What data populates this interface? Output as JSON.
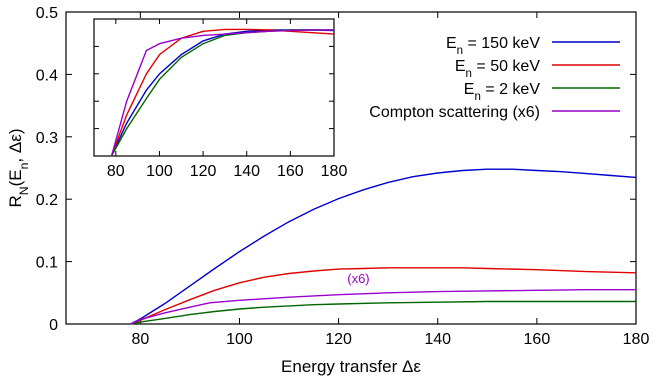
{
  "chart_data": [
    {
      "type": "line",
      "xlabel": "Energy transfer Δε",
      "ylabel": "Rₙ(Eₙ, Δε)",
      "ylabel_parts": {
        "main": "R",
        "sub1": "N",
        "mid": "(E",
        "sub2": "n",
        "tail": ", Δε)"
      },
      "xlim": [
        65,
        180
      ],
      "ylim": [
        0,
        0.5
      ],
      "xticks": [
        80,
        100,
        120,
        140,
        160,
        180
      ],
      "yticks": [
        0,
        0.1,
        0.2,
        0.3,
        0.4,
        0.5
      ],
      "xtick_labels": [
        "80",
        "100",
        "120",
        "140",
        "160",
        "180"
      ],
      "ytick_labels": [
        "0",
        "0.1",
        "0.2",
        "0.3",
        "0.4",
        "0.5"
      ],
      "legend_position": "top-right",
      "grid": false,
      "series": [
        {
          "name": "Eₙ = 150 keV",
          "legend": {
            "pre": "E",
            "sub": "n",
            "post": " = 150 keV"
          },
          "color": "#0000cc",
          "x": [
            78,
            80,
            85,
            90,
            95,
            100,
            105,
            110,
            115,
            120,
            125,
            130,
            135,
            140,
            145,
            150,
            155,
            160,
            165,
            170,
            175,
            180
          ],
          "y": [
            0.0,
            0.008,
            0.033,
            0.061,
            0.089,
            0.116,
            0.141,
            0.164,
            0.184,
            0.201,
            0.215,
            0.227,
            0.236,
            0.242,
            0.246,
            0.248,
            0.248,
            0.246,
            0.244,
            0.241,
            0.238,
            0.235
          ]
        },
        {
          "name": "Eₙ = 50 keV",
          "legend": {
            "pre": "E",
            "sub": "n",
            "post": " = 50 keV"
          },
          "color": "#e00000",
          "x": [
            78,
            80,
            85,
            90,
            95,
            100,
            105,
            110,
            115,
            120,
            125,
            130,
            135,
            140,
            145,
            150,
            160,
            170,
            180
          ],
          "y": [
            0.0,
            0.006,
            0.023,
            0.039,
            0.054,
            0.066,
            0.075,
            0.081,
            0.085,
            0.088,
            0.089,
            0.09,
            0.09,
            0.09,
            0.09,
            0.089,
            0.087,
            0.084,
            0.082
          ]
        },
        {
          "name": "Eₙ = 2 keV",
          "legend": {
            "pre": "E",
            "sub": "n",
            "post": " = 2 keV"
          },
          "color": "#006600",
          "x": [
            78,
            80,
            85,
            90,
            95,
            100,
            105,
            110,
            115,
            120,
            130,
            140,
            150,
            160,
            170,
            180
          ],
          "y": [
            0.0,
            0.003,
            0.009,
            0.015,
            0.02,
            0.024,
            0.027,
            0.029,
            0.031,
            0.032,
            0.034,
            0.035,
            0.036,
            0.036,
            0.036,
            0.036
          ]
        },
        {
          "name": "Compton scattering (x6)",
          "legend": {
            "pre": "Compton scattering (x6)",
            "sub": "",
            "post": ""
          },
          "color": "#9900cc",
          "x": [
            78,
            80,
            85,
            90,
            94,
            100,
            110,
            120,
            130,
            140,
            150,
            160,
            170,
            180
          ],
          "y": [
            0.0,
            0.007,
            0.018,
            0.027,
            0.034,
            0.038,
            0.043,
            0.047,
            0.05,
            0.052,
            0.053,
            0.054,
            0.055,
            0.055
          ]
        }
      ],
      "annotations": [
        {
          "text": "(x6)",
          "x": 124,
          "y": 0.066,
          "color": "#9900cc"
        }
      ]
    },
    {
      "type": "line",
      "role": "inset",
      "xlim": [
        70,
        180
      ],
      "ylim": [
        0,
        0.5
      ],
      "xticks": [
        80,
        100,
        120,
        140,
        160,
        180
      ],
      "xtick_labels": [
        "80",
        "100",
        "120",
        "140",
        "160",
        "180"
      ],
      "normalization": "each series scaled to the same maximum",
      "series": [
        {
          "color": "#0000cc",
          "x": [
            78,
            85,
            94,
            100,
            110,
            120,
            130,
            140,
            150,
            160,
            170,
            180
          ],
          "y": [
            0.0,
            0.12,
            0.24,
            0.3,
            0.37,
            0.42,
            0.445,
            0.455,
            0.46,
            0.46,
            0.46,
            0.458
          ]
        },
        {
          "color": "#e00000",
          "x": [
            78,
            85,
            94,
            100,
            110,
            120,
            130,
            140,
            150,
            160,
            170,
            180
          ],
          "y": [
            0.0,
            0.15,
            0.3,
            0.37,
            0.43,
            0.455,
            0.462,
            0.462,
            0.46,
            0.455,
            0.45,
            0.445
          ]
        },
        {
          "color": "#006600",
          "x": [
            78,
            85,
            94,
            100,
            110,
            120,
            130,
            140,
            150,
            160,
            170,
            180
          ],
          "y": [
            0.0,
            0.1,
            0.21,
            0.28,
            0.36,
            0.41,
            0.44,
            0.45,
            0.455,
            0.46,
            0.46,
            0.46
          ]
        },
        {
          "color": "#9900cc",
          "x": [
            78,
            85,
            94,
            100,
            110,
            120,
            130,
            140,
            150,
            160,
            170,
            180
          ],
          "y": [
            0.0,
            0.2,
            0.385,
            0.41,
            0.43,
            0.44,
            0.445,
            0.45,
            0.455,
            0.458,
            0.46,
            0.46
          ]
        }
      ]
    }
  ]
}
